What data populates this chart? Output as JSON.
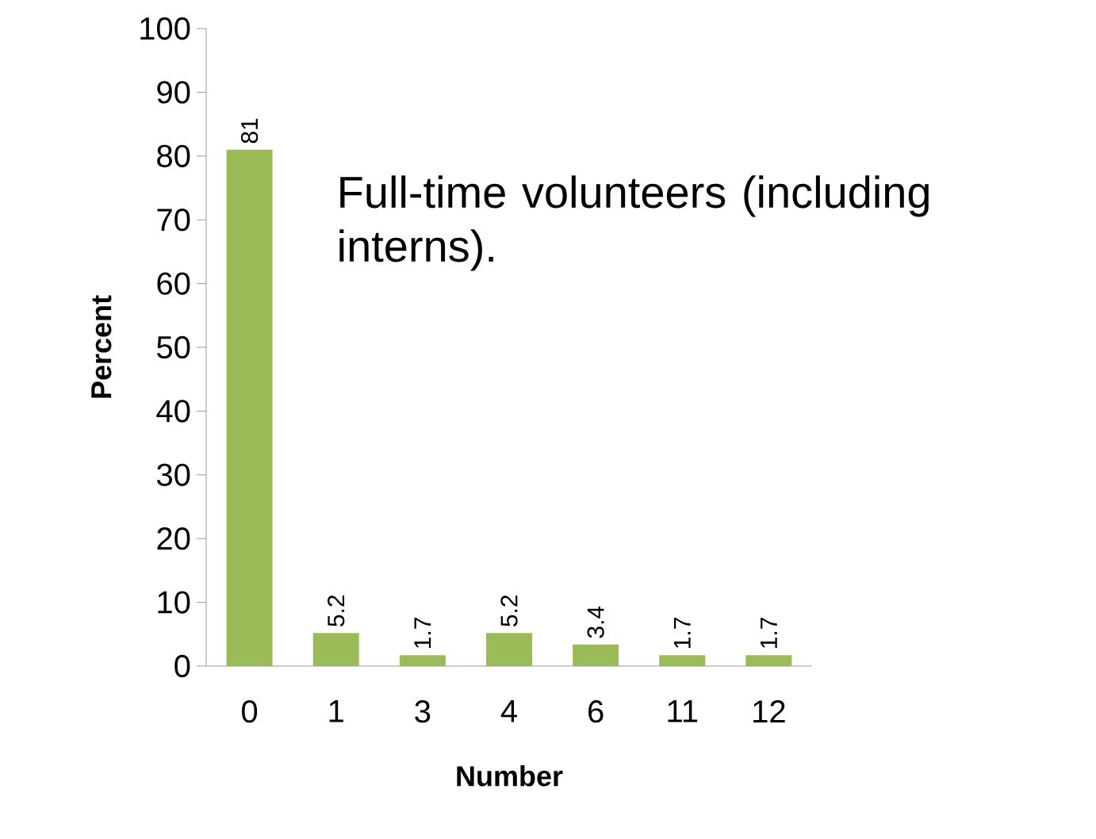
{
  "chart_data": {
    "type": "bar",
    "categories": [
      "0",
      "1",
      "3",
      "4",
      "6",
      "11",
      "12"
    ],
    "values": [
      81,
      5.2,
      1.7,
      5.2,
      3.4,
      1.7,
      1.7
    ],
    "color": "#9bbb59",
    "ylim": [
      0,
      100
    ],
    "yticks": [
      0,
      10,
      20,
      30,
      40,
      50,
      60,
      70,
      80,
      90,
      100
    ],
    "xlabel": "Number",
    "ylabel": "Percent",
    "data_labels": true,
    "annotations": [
      "Full-time volunteers (including interns)."
    ]
  }
}
